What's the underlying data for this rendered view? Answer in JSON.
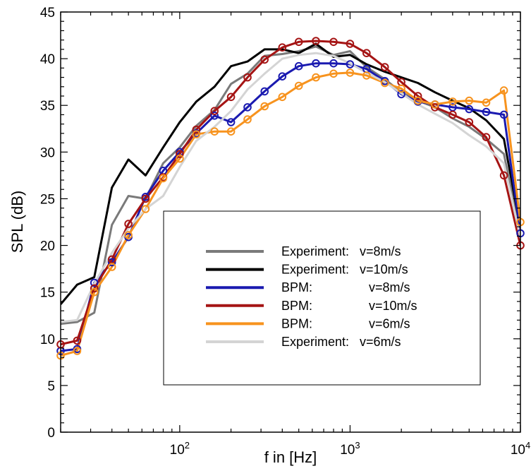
{
  "chart_data": {
    "type": "line",
    "xscale": "log",
    "xlim": [
      20,
      10000
    ],
    "ylim": [
      0,
      45
    ],
    "xlabel": "f in [Hz]",
    "ylabel": "SPL (dB)",
    "x_ticks": [
      {
        "value": 100,
        "base": "10",
        "exp": "2"
      },
      {
        "value": 1000,
        "base": "10",
        "exp": "3"
      },
      {
        "value": 10000,
        "base": "10",
        "exp": "4"
      }
    ],
    "y_ticks": [
      {
        "value": 0,
        "label": "0"
      },
      {
        "value": 5,
        "label": "5"
      },
      {
        "value": 10,
        "label": "10"
      },
      {
        "value": 15,
        "label": "15"
      },
      {
        "value": 20,
        "label": "20"
      },
      {
        "value": 25,
        "label": "25"
      },
      {
        "value": 30,
        "label": "30"
      },
      {
        "value": 35,
        "label": "35"
      },
      {
        "value": 40,
        "label": "40"
      },
      {
        "value": 45,
        "label": "45"
      }
    ],
    "grid": false,
    "legend_position": "lower-right",
    "series": [
      {
        "name": "Experiment:   v=8m/s",
        "color": "#7a7a7a",
        "markers": false,
        "x": [
          20,
          25,
          31.5,
          40,
          50,
          63,
          80,
          100,
          125,
          160,
          200,
          250,
          315,
          400,
          500,
          630,
          800,
          1000,
          1250,
          1600,
          2000,
          2500,
          3150,
          4000,
          5000,
          6300,
          8000,
          10000
        ],
        "y": [
          11.6,
          11.8,
          12.8,
          22.2,
          25.3,
          25.0,
          28.8,
          30.5,
          32.8,
          34.5,
          37.3,
          38.4,
          40.3,
          40.5,
          40.8,
          41.3,
          40.4,
          40.8,
          39.1,
          37.8,
          36.4,
          35.5,
          34.8,
          33.6,
          32.7,
          31.4,
          29.8,
          21.0
        ]
      },
      {
        "name": "Experiment:   v=10m/s",
        "color": "#000000",
        "markers": false,
        "x": [
          20,
          25,
          31.5,
          40,
          50,
          63,
          80,
          100,
          125,
          160,
          200,
          250,
          315,
          400,
          500,
          630,
          800,
          1000,
          1250,
          1600,
          2000,
          2500,
          3150,
          4000,
          5000,
          6300,
          8000,
          10000
        ],
        "y": [
          13.7,
          15.8,
          16.6,
          26.2,
          29.2,
          27.5,
          30.5,
          33.2,
          35.4,
          37.0,
          39.2,
          39.7,
          41.0,
          41.0,
          40.6,
          41.6,
          40.2,
          40.4,
          39.4,
          38.6,
          38.0,
          37.4,
          36.4,
          35.5,
          34.7,
          33.4,
          31.4,
          21.8
        ]
      },
      {
        "name": "BPM:                v=8m/s",
        "color": "#1a1ab0",
        "markers": true,
        "x": [
          20,
          25,
          31.5,
          40,
          50,
          63,
          80,
          100,
          125,
          160,
          200,
          250,
          315,
          400,
          500,
          630,
          800,
          1000,
          1250,
          1600,
          2000,
          2500,
          3150,
          4000,
          5000,
          6300,
          8000,
          10000
        ],
        "y": [
          8.7,
          8.9,
          16.0,
          18.2,
          20.9,
          25.2,
          28.0,
          30.0,
          32.0,
          33.9,
          33.2,
          34.8,
          36.5,
          38.1,
          39.2,
          39.5,
          39.5,
          39.4,
          38.9,
          37.6,
          36.2,
          35.4,
          35.1,
          34.8,
          34.6,
          34.3,
          34.0,
          21.3
        ]
      },
      {
        "name": "BPM:                v=10m/s",
        "color": "#a51414",
        "markers": true,
        "x": [
          20,
          25,
          31.5,
          40,
          50,
          63,
          80,
          100,
          125,
          160,
          200,
          250,
          315,
          400,
          500,
          630,
          800,
          1000,
          1250,
          1600,
          2000,
          2500,
          3150,
          4000,
          5000,
          6300,
          8000,
          10000
        ],
        "y": [
          9.4,
          9.8,
          15.4,
          18.5,
          22.3,
          25.0,
          27.3,
          29.8,
          32.4,
          34.4,
          35.9,
          38.0,
          39.9,
          41.2,
          41.8,
          41.9,
          41.8,
          41.6,
          40.6,
          39.1,
          37.5,
          36.0,
          34.8,
          34.0,
          33.2,
          31.6,
          27.5,
          20.0
        ]
      },
      {
        "name": "BPM:                v=6m/s",
        "color": "#f7931e",
        "markers": true,
        "x": [
          20,
          25,
          31.5,
          40,
          50,
          63,
          80,
          100,
          125,
          160,
          200,
          250,
          315,
          400,
          500,
          630,
          800,
          1000,
          1250,
          1600,
          2000,
          2500,
          3150,
          4000,
          5000,
          6300,
          8000,
          10000
        ],
        "y": [
          8.2,
          8.7,
          15.0,
          17.7,
          21.1,
          23.9,
          27.2,
          29.3,
          31.9,
          32.2,
          32.2,
          33.5,
          34.9,
          35.9,
          37.1,
          38.0,
          38.4,
          38.5,
          38.2,
          37.4,
          36.8,
          35.5,
          35.1,
          35.4,
          35.5,
          35.3,
          36.6,
          22.5
        ]
      },
      {
        "name": "Experiment:   v=6m/s",
        "color": "#d4d4d4",
        "markers": false,
        "x": [
          20,
          25,
          31.5,
          40,
          50,
          63,
          80,
          100,
          125,
          160,
          200,
          250,
          315,
          400,
          500,
          630,
          800,
          1000,
          1250,
          1600,
          2000,
          2500,
          3150,
          4000,
          5000,
          6300,
          8000,
          10000
        ],
        "y": [
          11.8,
          12.0,
          15.9,
          19.2,
          21.8,
          23.9,
          25.3,
          28.4,
          31.2,
          32.7,
          34.4,
          36.7,
          38.4,
          40.0,
          40.4,
          40.6,
          40.3,
          39.5,
          38.5,
          37.5,
          36.3,
          35.1,
          34.1,
          33.1,
          31.8,
          30.6,
          28.8,
          20.8
        ]
      }
    ]
  }
}
